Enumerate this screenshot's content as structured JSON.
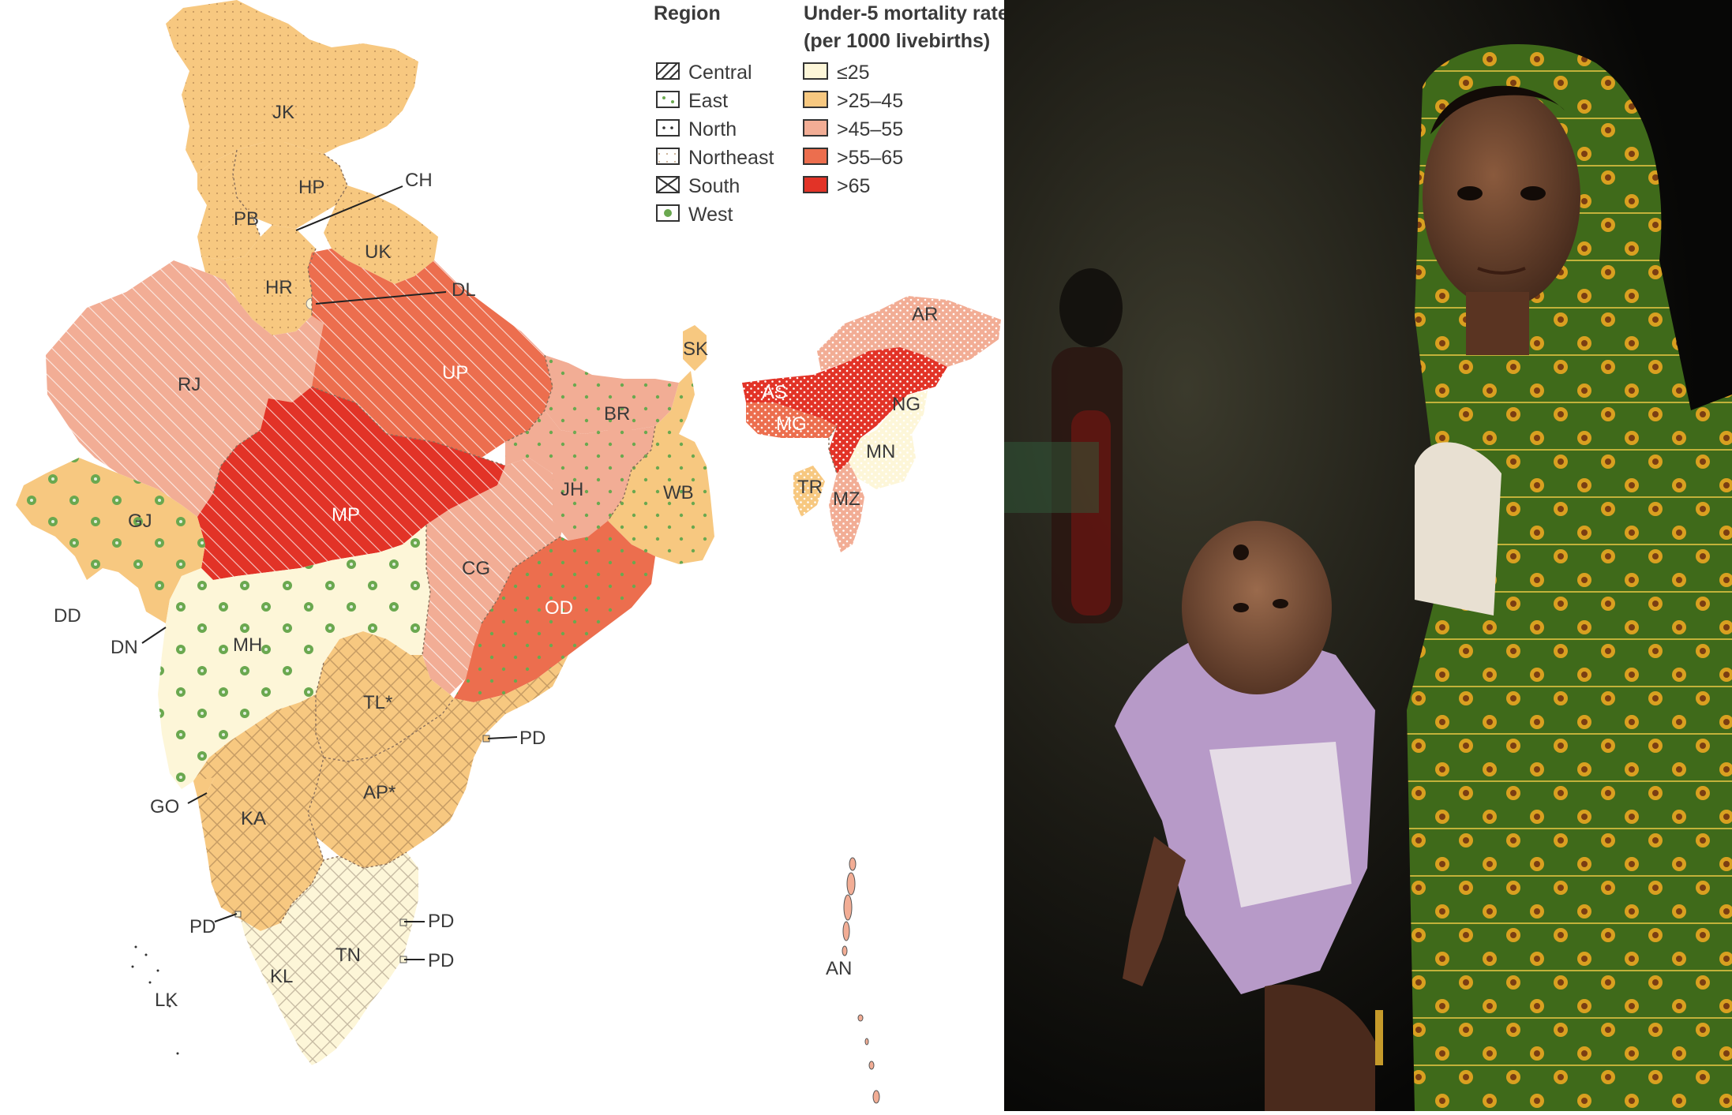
{
  "legend": {
    "region_title": "Region",
    "regions": [
      "Central",
      "East",
      "North",
      "Northeast",
      "South",
      "West"
    ],
    "rate_title_line1": "Under-5 mortality rate",
    "rate_title_line2": "(per 1000 livebirths)",
    "rate_bins": [
      {
        "label": "≤25",
        "color": "#fdf6d8"
      },
      {
        "label": ">25–45",
        "color": "#f7c880"
      },
      {
        "label": ">45–55",
        "color": "#f2ad95"
      },
      {
        "label": ">55–65",
        "color": "#ec6e4e"
      },
      {
        "label": ">65",
        "color": "#e23327"
      }
    ]
  },
  "states": [
    {
      "code": "JK",
      "region": "North",
      "bin": ">25–45"
    },
    {
      "code": "HP",
      "region": "North",
      "bin": ">25–45"
    },
    {
      "code": "PB",
      "region": "North",
      "bin": ">25–45"
    },
    {
      "code": "CH",
      "region": "North",
      "bin": ">25–45"
    },
    {
      "code": "UK",
      "region": "North",
      "bin": ">25–45"
    },
    {
      "code": "HR",
      "region": "North",
      "bin": ">25–45"
    },
    {
      "code": "DL",
      "region": "North",
      "bin": "≤25"
    },
    {
      "code": "RJ",
      "region": "Central",
      "bin": ">45–55"
    },
    {
      "code": "UP",
      "region": "Central",
      "bin": ">55–65"
    },
    {
      "code": "MP",
      "region": "Central",
      "bin": ">65"
    },
    {
      "code": "CG",
      "region": "Central",
      "bin": ">45–55"
    },
    {
      "code": "GJ",
      "region": "West",
      "bin": ">25–45"
    },
    {
      "code": "DD",
      "region": "West",
      "bin": ""
    },
    {
      "code": "DN",
      "region": "West",
      "bin": ""
    },
    {
      "code": "MH",
      "region": "West",
      "bin": "≤25"
    },
    {
      "code": "GO",
      "region": "West",
      "bin": ""
    },
    {
      "code": "BR",
      "region": "East",
      "bin": ">45–55"
    },
    {
      "code": "JH",
      "region": "East",
      "bin": ">45–55"
    },
    {
      "code": "WB",
      "region": "East",
      "bin": ">25–45"
    },
    {
      "code": "OD",
      "region": "East",
      "bin": ">55–65"
    },
    {
      "code": "SK",
      "region": "Northeast",
      "bin": ">25–45"
    },
    {
      "code": "AR",
      "region": "Northeast",
      "bin": ">45–55"
    },
    {
      "code": "AS",
      "region": "Northeast",
      "bin": ">65"
    },
    {
      "code": "MG",
      "region": "Northeast",
      "bin": ">55–65"
    },
    {
      "code": "NG",
      "region": "Northeast",
      "bin": "≤25"
    },
    {
      "code": "MN",
      "region": "Northeast",
      "bin": "≤25"
    },
    {
      "code": "TR",
      "region": "Northeast",
      "bin": ">25–45"
    },
    {
      "code": "MZ",
      "region": "Northeast",
      "bin": ">45–55"
    },
    {
      "code": "TL*",
      "region": "South",
      "bin": ">25–45"
    },
    {
      "code": "AP*",
      "region": "South",
      "bin": ">25–45"
    },
    {
      "code": "KA",
      "region": "South",
      "bin": ">25–45"
    },
    {
      "code": "KL",
      "region": "South",
      "bin": "≤25"
    },
    {
      "code": "TN",
      "region": "South",
      "bin": "≤25"
    },
    {
      "code": "PD",
      "region": "South",
      "bin": ""
    },
    {
      "code": "AN",
      "region": "South",
      "bin": ">45–55"
    },
    {
      "code": "LK",
      "region": "",
      "bin": ""
    }
  ],
  "colors": {
    "low": "#fdf6d8",
    "midlow": "#f7c880",
    "mid": "#f2ad95",
    "midhigh": "#ec6e4e",
    "high": "#e23327"
  }
}
